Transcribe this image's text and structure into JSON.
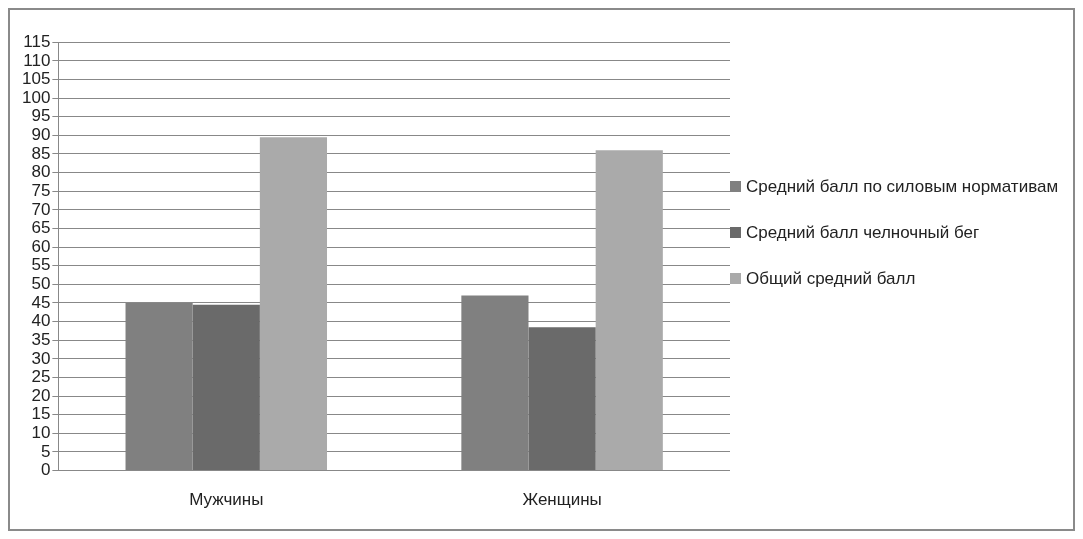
{
  "chart_data": {
    "type": "bar",
    "categories": [
      "Мужчины",
      "Женщины"
    ],
    "series": [
      {
        "name": "Средний балл по силовым нормативам",
        "color": "#808080",
        "values": [
          45,
          47
        ]
      },
      {
        "name": "Средний балл челночный бег",
        "color": "#6a6a6a",
        "values": [
          44.5,
          38.5
        ]
      },
      {
        "name": "Общий средний балл",
        "color": "#aaaaaa",
        "values": [
          89.5,
          86
        ]
      }
    ],
    "ylim": [
      0,
      115
    ],
    "yticks": [
      0,
      5,
      10,
      15,
      20,
      25,
      30,
      35,
      40,
      45,
      50,
      55,
      60,
      65,
      70,
      75,
      80,
      85,
      90,
      95,
      100,
      105,
      110,
      115
    ],
    "grid": "y",
    "legend": "right"
  }
}
